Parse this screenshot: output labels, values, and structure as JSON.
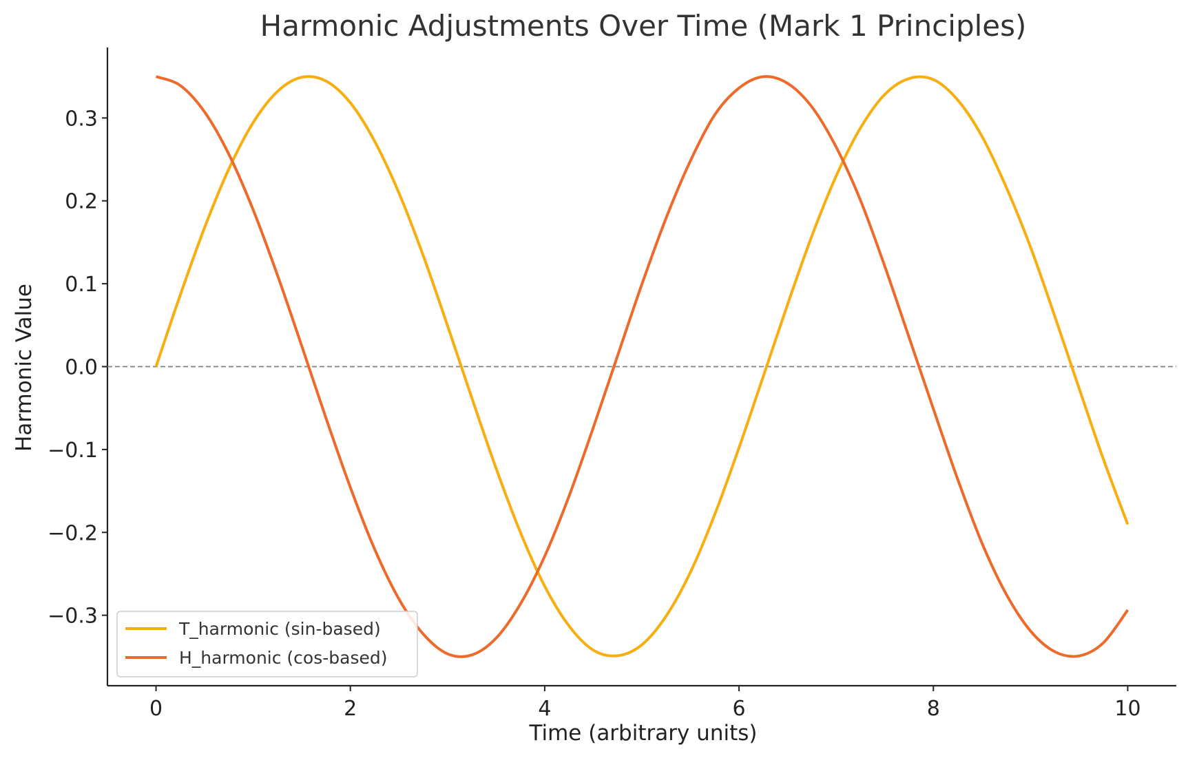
{
  "chart_data": {
    "type": "line",
    "title": "Harmonic Adjustments Over Time (Mark 1 Principles)",
    "xlabel": "Time (arbitrary units)",
    "ylabel": "Harmonic Value",
    "xlim": [
      -0.5,
      10.5
    ],
    "ylim": [
      -0.385,
      0.385
    ],
    "x_ticks": [
      0,
      2,
      4,
      6,
      8,
      10
    ],
    "x_tick_labels": [
      "0",
      "2",
      "4",
      "6",
      "8",
      "10"
    ],
    "y_ticks": [
      -0.3,
      -0.2,
      -0.1,
      0.0,
      0.1,
      0.2,
      0.3
    ],
    "y_tick_labels": [
      "−0.3",
      "−0.2",
      "−0.1",
      "0.0",
      "0.1",
      "0.2",
      "0.3"
    ],
    "grid": false,
    "legend_position": "lower-left",
    "reference_line": {
      "y": 0.0,
      "style": "dashed",
      "color": "#808080"
    },
    "x": [
      0.0,
      0.25,
      0.5,
      0.75,
      1.0,
      1.25,
      1.5,
      1.75,
      2.0,
      2.25,
      2.5,
      2.75,
      3.0,
      3.25,
      3.5,
      3.75,
      4.0,
      4.25,
      4.5,
      4.75,
      5.0,
      5.25,
      5.5,
      5.75,
      6.0,
      6.25,
      6.5,
      6.75,
      7.0,
      7.25,
      7.5,
      7.75,
      8.0,
      8.25,
      8.5,
      8.75,
      9.0,
      9.25,
      9.5,
      9.75,
      10.0
    ],
    "series": [
      {
        "name": "T_harmonic (sin-based)",
        "color": "#F8AE0E",
        "values": [
          0.0,
          0.0866,
          0.1678,
          0.2386,
          0.2945,
          0.332,
          0.3491,
          0.3445,
          0.3183,
          0.2719,
          0.2095,
          0.1339,
          0.0494,
          -0.0378,
          -0.1228,
          -0.2,
          -0.2649,
          -0.3128,
          -0.3421,
          -0.3488,
          -0.3356,
          -0.3009,
          -0.248,
          -0.1784,
          -0.0978,
          -0.0116,
          0.0752,
          0.1578,
          0.23,
          0.288,
          0.3284,
          0.3476,
          0.3463,
          0.3217,
          0.2779,
          0.2164,
          0.1442,
          0.0605,
          -0.0263,
          -0.1118,
          -0.1904
        ]
      },
      {
        "name": "H_harmonic (cos-based)",
        "color": "#EE6A2A",
        "values": [
          0.35,
          0.3391,
          0.3072,
          0.2561,
          0.1891,
          0.1103,
          0.0248,
          -0.0624,
          -0.1457,
          -0.2203,
          -0.2804,
          -0.3227,
          -0.3465,
          -0.3479,
          -0.3276,
          -0.2864,
          -0.2288,
          -0.1564,
          -0.0736,
          0.0131,
          0.0993,
          0.1794,
          0.2484,
          0.3038,
          0.3361,
          0.3498,
          0.3417,
          0.3133,
          0.2648,
          0.2006,
          0.121,
          0.0352,
          -0.051,
          -0.1358,
          -0.2129,
          -0.2746,
          -0.319,
          -0.344,
          -0.349,
          -0.3331,
          -0.2937
        ]
      }
    ]
  }
}
